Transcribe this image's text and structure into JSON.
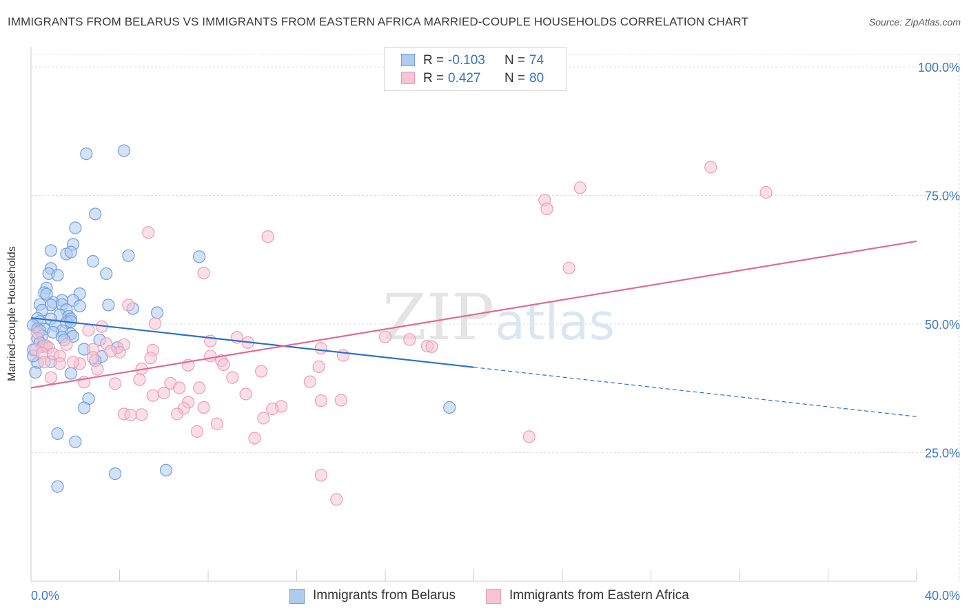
{
  "title": "IMMIGRANTS FROM BELARUS VS IMMIGRANTS FROM EASTERN AFRICA MARRIED-COUPLE HOUSEHOLDS CORRELATION CHART",
  "source": "Source: ZipAtlas.com",
  "colors": {
    "belarus_fill": "#aecbf0",
    "belarus_stroke": "#6f9fde",
    "belarus_line": "#2a6fd0",
    "eafrica_fill": "#f7c4d4",
    "eafrica_stroke": "#ec9bb5",
    "eafrica_line": "#e06a94",
    "axis_text": "#3a78c8",
    "grid": "#dddddd"
  },
  "stats": {
    "belarus": {
      "r_label": "R =",
      "r_value": "-0.103",
      "n_label": "N =",
      "n_value": "74"
    },
    "eafrica": {
      "r_label": "R =",
      "r_value": "0.427",
      "n_label": "N =",
      "n_value": "80"
    }
  },
  "legend": {
    "belarus": "Immigrants from Belarus",
    "eafrica": "Immigrants from Eastern Africa"
  },
  "watermark": {
    "zip": "ZIP",
    "atlas": "atlas"
  },
  "chart_data": {
    "type": "scatter",
    "title": "IMMIGRANTS FROM BELARUS VS IMMIGRANTS FROM EASTERN AFRICA MARRIED-COUPLE HOUSEHOLDS CORRELATION CHART",
    "xlabel": "",
    "ylabel": "Married-couple Households",
    "xlim": [
      0,
      40
    ],
    "ylim": [
      0,
      105
    ],
    "x_tick_labels": [
      {
        "value": 0,
        "label": "0.0%"
      },
      {
        "value": 40,
        "label": "40.0%"
      }
    ],
    "y_tick_labels": [
      {
        "value": 25,
        "label": "25.0%"
      },
      {
        "value": 50,
        "label": "50.0%"
      },
      {
        "value": 75,
        "label": "75.0%"
      },
      {
        "value": 100,
        "label": "100.0%"
      }
    ],
    "grid": true,
    "legend_position": "bottom",
    "series": [
      {
        "name": "Immigrants from Belarus",
        "color": "#aecbf0",
        "points": [
          [
            2.5,
            83.1
          ],
          [
            4.2,
            83.7
          ],
          [
            2.9,
            71.4
          ],
          [
            2.0,
            68.7
          ],
          [
            1.9,
            65.5
          ],
          [
            0.9,
            64.3
          ],
          [
            1.6,
            63.6
          ],
          [
            1.8,
            64.0
          ],
          [
            4.4,
            63.3
          ],
          [
            7.6,
            63.1
          ],
          [
            2.8,
            62.2
          ],
          [
            0.9,
            60.8
          ],
          [
            0.8,
            59.8
          ],
          [
            1.2,
            59.5
          ],
          [
            3.4,
            59.8
          ],
          [
            0.7,
            57.0
          ],
          [
            0.6,
            56.1
          ],
          [
            0.7,
            55.8
          ],
          [
            2.2,
            55.9
          ],
          [
            1.4,
            54.6
          ],
          [
            1.0,
            54.2
          ],
          [
            1.9,
            54.6
          ],
          [
            0.4,
            53.8
          ],
          [
            0.9,
            53.7
          ],
          [
            1.4,
            53.8
          ],
          [
            2.2,
            53.5
          ],
          [
            3.5,
            53.7
          ],
          [
            4.6,
            53.0
          ],
          [
            0.5,
            52.7
          ],
          [
            1.6,
            52.8
          ],
          [
            5.7,
            52.2
          ],
          [
            1.3,
            51.8
          ],
          [
            1.7,
            51.5
          ],
          [
            1.8,
            51.0
          ],
          [
            0.3,
            51.1
          ],
          [
            0.4,
            50.5
          ],
          [
            0.9,
            51.0
          ],
          [
            1.6,
            50.3
          ],
          [
            1.8,
            50.5
          ],
          [
            0.1,
            49.8
          ],
          [
            1.1,
            49.7
          ],
          [
            0.3,
            49.1
          ],
          [
            0.6,
            49.0
          ],
          [
            0.4,
            48.7
          ],
          [
            1.4,
            48.7
          ],
          [
            1.0,
            48.4
          ],
          [
            1.8,
            48.1
          ],
          [
            0.5,
            47.7
          ],
          [
            1.4,
            47.5
          ],
          [
            1.9,
            47.6
          ],
          [
            0.3,
            47.2
          ],
          [
            1.5,
            46.9
          ],
          [
            3.1,
            46.9
          ],
          [
            0.4,
            46.4
          ],
          [
            0.7,
            45.7
          ],
          [
            0.5,
            45.6
          ],
          [
            2.4,
            45.1
          ],
          [
            3.9,
            45.4
          ],
          [
            0.1,
            45.0
          ],
          [
            3.2,
            43.7
          ],
          [
            2.9,
            42.9
          ],
          [
            0.9,
            42.7
          ],
          [
            0.3,
            42.5
          ],
          [
            1.8,
            40.4
          ],
          [
            0.2,
            40.6
          ],
          [
            2.6,
            35.5
          ],
          [
            2.4,
            33.7
          ],
          [
            18.9,
            33.8
          ],
          [
            1.2,
            28.7
          ],
          [
            2.0,
            27.1
          ],
          [
            3.8,
            20.9
          ],
          [
            6.1,
            21.6
          ],
          [
            1.2,
            18.4
          ],
          [
            0.1,
            43.8
          ]
        ]
      },
      {
        "name": "Immigrants from Eastern Africa",
        "color": "#f7c4d4",
        "points": [
          [
            30.7,
            80.5
          ],
          [
            24.8,
            76.5
          ],
          [
            33.2,
            75.6
          ],
          [
            23.2,
            74.1
          ],
          [
            23.3,
            72.4
          ],
          [
            5.3,
            67.8
          ],
          [
            10.7,
            67.0
          ],
          [
            24.3,
            60.9
          ],
          [
            7.8,
            59.9
          ],
          [
            4.4,
            53.7
          ],
          [
            5.6,
            50.1
          ],
          [
            3.2,
            49.5
          ],
          [
            2.6,
            48.8
          ],
          [
            9.3,
            47.4
          ],
          [
            16.0,
            47.5
          ],
          [
            17.1,
            47.0
          ],
          [
            8.1,
            46.7
          ],
          [
            9.8,
            46.4
          ],
          [
            3.4,
            46.2
          ],
          [
            1.6,
            46.0
          ],
          [
            4.2,
            46.0
          ],
          [
            17.9,
            45.7
          ],
          [
            18.1,
            45.6
          ],
          [
            0.6,
            45.9
          ],
          [
            0.8,
            45.4
          ],
          [
            13.1,
            45.3
          ],
          [
            2.8,
            45.1
          ],
          [
            0.2,
            45.0
          ],
          [
            5.5,
            44.9
          ],
          [
            4.0,
            44.5
          ],
          [
            0.5,
            44.3
          ],
          [
            1.0,
            44.2
          ],
          [
            1.3,
            43.8
          ],
          [
            14.1,
            43.9
          ],
          [
            8.1,
            43.8
          ],
          [
            2.8,
            43.5
          ],
          [
            5.4,
            43.4
          ],
          [
            8.6,
            42.9
          ],
          [
            0.6,
            42.6
          ],
          [
            1.3,
            42.3
          ],
          [
            2.2,
            42.3
          ],
          [
            8.7,
            42.1
          ],
          [
            7.1,
            42.0
          ],
          [
            13.0,
            41.7
          ],
          [
            5.0,
            41.3
          ],
          [
            3.0,
            41.2
          ],
          [
            10.4,
            40.8
          ],
          [
            0.9,
            39.6
          ],
          [
            9.1,
            39.6
          ],
          [
            4.9,
            39.2
          ],
          [
            12.6,
            38.8
          ],
          [
            2.4,
            38.7
          ],
          [
            3.8,
            38.4
          ],
          [
            6.3,
            38.5
          ],
          [
            6.7,
            37.6
          ],
          [
            7.6,
            37.6
          ],
          [
            6.0,
            36.6
          ],
          [
            5.5,
            36.1
          ],
          [
            9.7,
            36.4
          ],
          [
            13.1,
            35.1
          ],
          [
            14.0,
            35.2
          ],
          [
            11.3,
            34.0
          ],
          [
            7.1,
            34.8
          ],
          [
            7.8,
            33.8
          ],
          [
            6.9,
            33.6
          ],
          [
            4.2,
            32.5
          ],
          [
            4.5,
            32.3
          ],
          [
            5.0,
            32.4
          ],
          [
            6.6,
            32.5
          ],
          [
            10.5,
            31.7
          ],
          [
            8.4,
            30.6
          ],
          [
            7.5,
            29.1
          ],
          [
            10.1,
            27.8
          ],
          [
            22.5,
            28.1
          ],
          [
            13.1,
            20.6
          ],
          [
            13.8,
            15.9
          ],
          [
            1.9,
            42.6
          ],
          [
            0.3,
            48.3
          ],
          [
            3.6,
            44.7
          ],
          [
            10.9,
            33.5
          ]
        ]
      }
    ],
    "trend_lines": [
      {
        "series": "Immigrants from Belarus",
        "solid": [
          [
            0,
            51.2
          ],
          [
            20,
            41.6
          ]
        ],
        "dashed": [
          [
            20,
            41.6
          ],
          [
            40,
            32.0
          ]
        ]
      },
      {
        "series": "Immigrants from Eastern Africa",
        "solid": [
          [
            0,
            37.6
          ],
          [
            40,
            66.1
          ]
        ]
      }
    ]
  }
}
